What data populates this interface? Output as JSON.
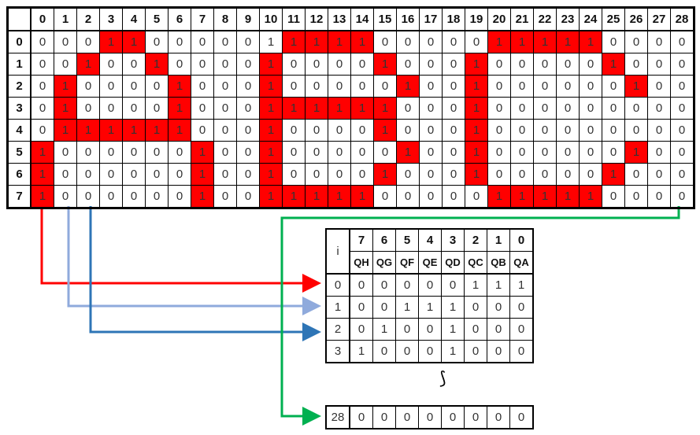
{
  "grid": {
    "col_headers": [
      "0",
      "1",
      "2",
      "3",
      "4",
      "5",
      "6",
      "7",
      "8",
      "9",
      "10",
      "11",
      "12",
      "13",
      "14",
      "15",
      "16",
      "17",
      "18",
      "19",
      "20",
      "21",
      "22",
      "23",
      "24",
      "25",
      "26",
      "27",
      "28"
    ],
    "row_headers": [
      "0",
      "1",
      "2",
      "3",
      "4",
      "5",
      "6",
      "7"
    ],
    "rows": [
      [
        0,
        0,
        0,
        1,
        1,
        0,
        0,
        0,
        0,
        0,
        1,
        1,
        1,
        1,
        1,
        0,
        0,
        0,
        0,
        0,
        1,
        1,
        1,
        1,
        1,
        0,
        0,
        0,
        0
      ],
      [
        0,
        0,
        1,
        0,
        0,
        1,
        0,
        0,
        0,
        0,
        1,
        0,
        0,
        0,
        0,
        1,
        0,
        0,
        0,
        1,
        0,
        0,
        0,
        0,
        0,
        1,
        0,
        0,
        0
      ],
      [
        0,
        1,
        0,
        0,
        0,
        0,
        1,
        0,
        0,
        0,
        1,
        0,
        0,
        0,
        0,
        0,
        1,
        0,
        0,
        1,
        0,
        0,
        0,
        0,
        0,
        0,
        1,
        0,
        0
      ],
      [
        0,
        1,
        0,
        0,
        0,
        0,
        1,
        0,
        0,
        0,
        1,
        1,
        1,
        1,
        1,
        1,
        0,
        0,
        0,
        1,
        0,
        0,
        0,
        0,
        0,
        0,
        0,
        0,
        0
      ],
      [
        0,
        1,
        1,
        1,
        1,
        1,
        1,
        0,
        0,
        0,
        1,
        0,
        0,
        0,
        0,
        1,
        0,
        0,
        0,
        1,
        0,
        0,
        0,
        0,
        0,
        0,
        0,
        0,
        0
      ],
      [
        1,
        0,
        0,
        0,
        0,
        0,
        0,
        1,
        0,
        0,
        1,
        0,
        0,
        0,
        0,
        0,
        1,
        0,
        0,
        1,
        0,
        0,
        0,
        0,
        0,
        0,
        1,
        0,
        0
      ],
      [
        1,
        0,
        0,
        0,
        0,
        0,
        0,
        1,
        0,
        0,
        1,
        0,
        0,
        0,
        0,
        1,
        0,
        0,
        0,
        1,
        0,
        0,
        0,
        0,
        0,
        1,
        0,
        0,
        0
      ],
      [
        1,
        0,
        0,
        0,
        0,
        0,
        0,
        1,
        0,
        0,
        1,
        1,
        1,
        1,
        1,
        0,
        0,
        0,
        0,
        0,
        1,
        1,
        1,
        1,
        1,
        0,
        0,
        0,
        0
      ]
    ],
    "unhighlighted_ones": [
      [
        0,
        10
      ]
    ],
    "highlight_color": "#ff0000"
  },
  "encoding": {
    "index_header": "i",
    "bit_headers": [
      "7",
      "6",
      "5",
      "4",
      "3",
      "2",
      "1",
      "0"
    ],
    "pin_headers": [
      "QH",
      "QG",
      "QF",
      "QE",
      "QD",
      "QC",
      "QB",
      "QA"
    ],
    "rows": [
      {
        "i": "0",
        "bits": [
          "0",
          "0",
          "0",
          "0",
          "0",
          "1",
          "1",
          "1"
        ]
      },
      {
        "i": "1",
        "bits": [
          "0",
          "0",
          "1",
          "1",
          "1",
          "0",
          "0",
          "0"
        ]
      },
      {
        "i": "2",
        "bits": [
          "0",
          "1",
          "0",
          "0",
          "1",
          "0",
          "0",
          "0"
        ]
      },
      {
        "i": "3",
        "bits": [
          "1",
          "0",
          "0",
          "0",
          "1",
          "0",
          "0",
          "0"
        ]
      }
    ],
    "ellipsis": "⟆",
    "last_row": {
      "i": "28",
      "bits": [
        "0",
        "0",
        "0",
        "0",
        "0",
        "0",
        "0",
        "0"
      ]
    }
  },
  "arrows": {
    "col0_color": "#ff0000",
    "col1_color": "#8faadc",
    "col2_color": "#2e75b6",
    "col28_color": "#00b050"
  }
}
